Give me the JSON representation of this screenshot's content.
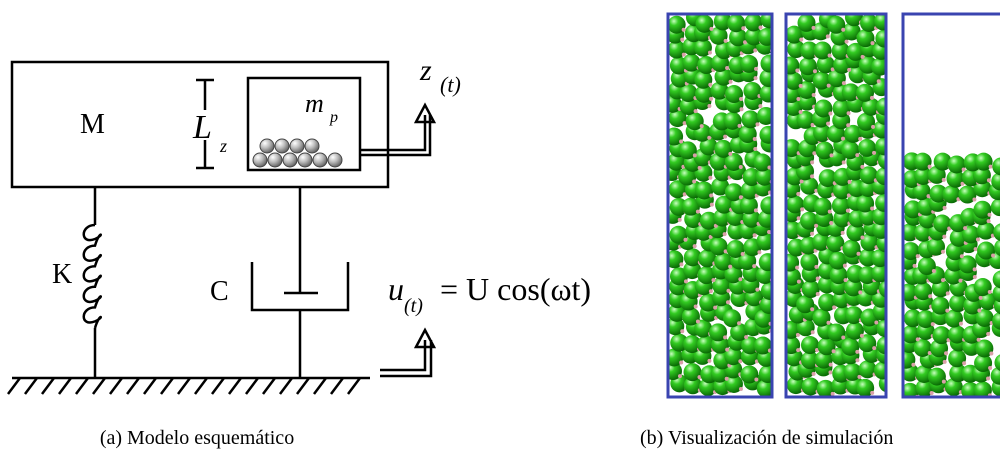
{
  "schematic": {
    "mass": "M",
    "length": "L",
    "length_sub": "z",
    "particle_mass": "m",
    "particle_sub": "p",
    "displacement": "z",
    "displacement_sub": "(t)",
    "spring": "K",
    "damper": "C",
    "input": "u",
    "input_sub": "(t)",
    "input_eq": "= U cos(ωt)"
  },
  "captions": [
    "(a) Modelo esquemático",
    "(b) Visualización de simulación"
  ]
}
